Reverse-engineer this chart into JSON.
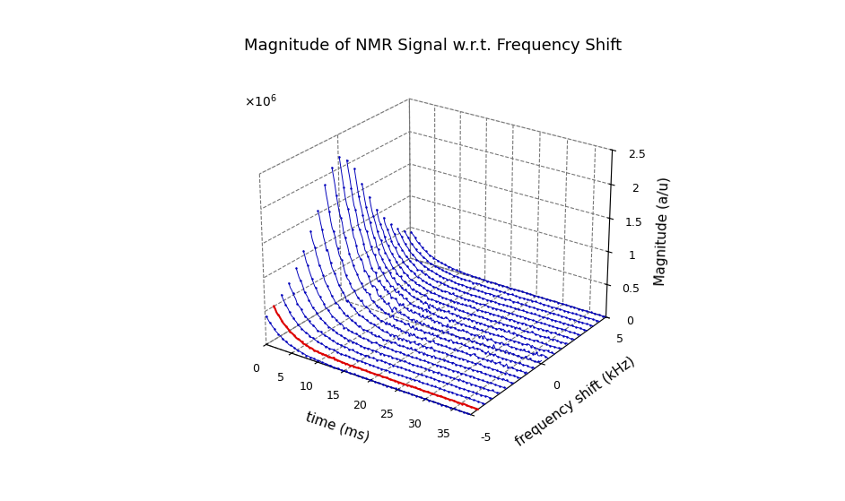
{
  "title": "Magnitude of NMR Signal w.r.t. Frequency Shift",
  "xlabel": "time (ms)",
  "ylabel": "frequency shift (kHz)",
  "zlabel": "Magnitude (a/u)",
  "time_range": [
    0,
    38
  ],
  "freq_range": [
    -5,
    5
  ],
  "mag_scale": 1000000,
  "mag_max": 2.5,
  "n_freq_curves": 21,
  "n_time_points": 150,
  "t2_star_ms": 3.5,
  "peak_magnitude": 2300000,
  "red_curve_freq": -4.5,
  "background_color": "#ffffff",
  "blue_color": "#0000bb",
  "red_color": "#dd0000",
  "grid_color": "#777777",
  "title_fontsize": 13,
  "label_fontsize": 11,
  "tick_fontsize": 9,
  "elev": 25,
  "azim": -55,
  "linewidth_khz": 2.5,
  "noise_scale": 0.025,
  "marker": ".",
  "markersize": 1.5
}
